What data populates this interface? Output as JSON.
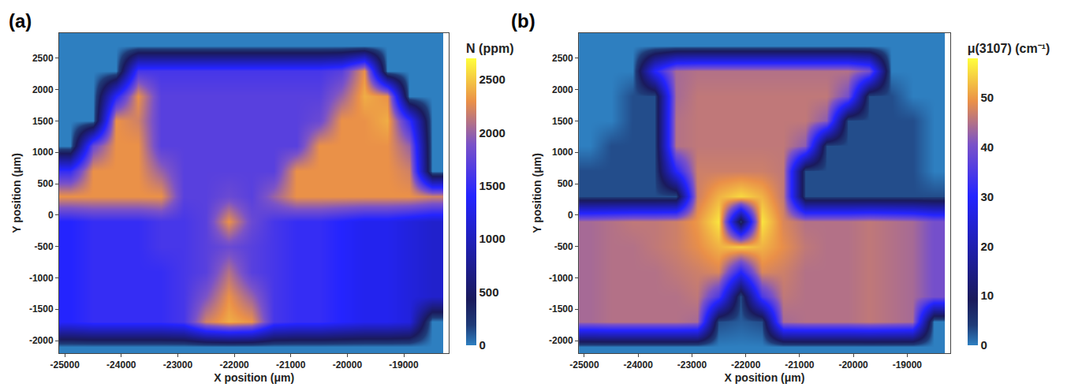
{
  "chart_data": [
    {
      "type": "heatmap",
      "panel": "(a)",
      "colorbar_title": "N (ppm)",
      "x_label": "X position (μm)",
      "y_label": "Y position (μm)",
      "xlim": [
        -25100,
        -18200
      ],
      "ylim": [
        -2200,
        2900
      ],
      "xticks": [
        -25000,
        -24000,
        -23000,
        -22000,
        -21000,
        -20000,
        -19000
      ],
      "yticks": [
        -2000,
        -1500,
        -1000,
        -500,
        0,
        500,
        1000,
        1500,
        2000,
        2500
      ],
      "zlim": [
        0,
        2700
      ],
      "zticks": [
        0,
        500,
        1000,
        1500,
        2000,
        2500
      ],
      "x": [
        -24900,
        -24500,
        -24100,
        -23700,
        -23300,
        -22900,
        -22500,
        -22100,
        -21700,
        -21300,
        -20900,
        -20500,
        -20100,
        -19700,
        -19300,
        -18900,
        -18500
      ],
      "y": [
        -2100,
        -1700,
        -1300,
        -900,
        -500,
        -100,
        300,
        700,
        1100,
        1500,
        1900,
        2300,
        2700
      ],
      "z": [
        [
          0,
          0,
          0,
          0,
          0,
          0,
          0,
          0,
          0,
          0,
          0,
          0,
          0,
          0,
          0,
          0,
          0
        ],
        [
          1400,
          1500,
          1500,
          1500,
          1500,
          1600,
          2200,
          2400,
          2300,
          1600,
          1500,
          1500,
          1400,
          1300,
          1300,
          1200,
          0
        ],
        [
          1400,
          1500,
          1500,
          1500,
          1500,
          1600,
          1900,
          2300,
          2000,
          1600,
          1500,
          1500,
          1400,
          1300,
          1300,
          1200,
          1100
        ],
        [
          1400,
          1500,
          1500,
          1500,
          1500,
          1600,
          1700,
          2100,
          1700,
          1600,
          1500,
          1500,
          1400,
          1300,
          1300,
          1200,
          1100
        ],
        [
          1400,
          1500,
          1500,
          1500,
          1600,
          1600,
          1700,
          1800,
          1700,
          1600,
          1500,
          1500,
          1400,
          1300,
          1300,
          1200,
          1100
        ],
        [
          1400,
          1500,
          1500,
          1500,
          1600,
          1600,
          1700,
          2300,
          1800,
          1600,
          1500,
          1500,
          1400,
          1300,
          1300,
          1200,
          1100
        ],
        [
          2300,
          2300,
          2300,
          2300,
          2300,
          1700,
          1700,
          1800,
          1700,
          2000,
          2300,
          2300,
          2300,
          2300,
          2300,
          2300,
          2200
        ],
        [
          1500,
          2300,
          2300,
          2300,
          2000,
          1700,
          1700,
          1700,
          1700,
          1700,
          2300,
          2300,
          2300,
          2300,
          2300,
          2200,
          0
        ],
        [
          0,
          1800,
          2300,
          2300,
          1700,
          1700,
          1700,
          1700,
          1700,
          1700,
          1700,
          2300,
          2300,
          2300,
          2300,
          2000,
          0
        ],
        [
          0,
          0,
          2300,
          2200,
          1700,
          1700,
          1700,
          1700,
          1700,
          1700,
          1700,
          1800,
          2300,
          2300,
          2400,
          1500,
          0
        ],
        [
          0,
          0,
          1400,
          2300,
          1700,
          1700,
          1700,
          1700,
          1700,
          1700,
          1700,
          1700,
          2000,
          2400,
          2300,
          0,
          0
        ],
        [
          0,
          0,
          0,
          1600,
          1600,
          1600,
          1600,
          1600,
          1600,
          1600,
          1600,
          1600,
          1700,
          2300,
          0,
          0,
          0
        ],
        [
          0,
          0,
          0,
          0,
          0,
          0,
          0,
          0,
          0,
          0,
          0,
          0,
          0,
          0,
          0,
          0,
          0
        ]
      ]
    },
    {
      "type": "heatmap",
      "panel": "(b)",
      "colorbar_title": "μ(3107) (cm⁻¹)",
      "x_label": "X position (μm)",
      "y_label": "Y position (μm)",
      "xlim": [
        -25100,
        -18200
      ],
      "ylim": [
        -2200,
        2900
      ],
      "xticks": [
        -25000,
        -24000,
        -23000,
        -22000,
        -21000,
        -20000,
        -19000
      ],
      "yticks": [
        -2000,
        -1500,
        -1000,
        -500,
        0,
        500,
        1000,
        1500,
        2000,
        2500
      ],
      "zlim": [
        0,
        58
      ],
      "zticks": [
        0,
        10,
        20,
        30,
        40,
        50
      ],
      "x": [
        -24900,
        -24500,
        -24100,
        -23700,
        -23300,
        -22900,
        -22500,
        -22100,
        -21700,
        -21300,
        -20900,
        -20500,
        -20100,
        -19700,
        -19300,
        -18900,
        -18500
      ],
      "y": [
        -2100,
        -1700,
        -1300,
        -900,
        -500,
        -100,
        300,
        700,
        1100,
        1500,
        1900,
        2300,
        2700
      ],
      "z": [
        [
          0,
          0,
          0,
          0,
          0,
          0,
          0,
          0,
          0,
          0,
          0,
          0,
          0,
          0,
          0,
          0,
          0
        ],
        [
          44,
          45,
          45,
          45,
          45,
          44,
          3,
          2,
          3,
          44,
          45,
          45,
          45,
          46,
          45,
          44,
          0
        ],
        [
          44,
          45,
          45,
          45,
          45,
          46,
          35,
          3,
          35,
          46,
          45,
          45,
          45,
          46,
          45,
          44,
          40
        ],
        [
          44,
          45,
          45,
          45,
          46,
          47,
          48,
          30,
          48,
          47,
          45,
          45,
          45,
          46,
          45,
          44,
          40
        ],
        [
          44,
          45,
          45,
          46,
          47,
          49,
          52,
          54,
          52,
          49,
          46,
          45,
          45,
          46,
          45,
          44,
          40
        ],
        [
          44,
          45,
          46,
          46,
          47,
          50,
          56,
          5,
          56,
          48,
          45,
          45,
          45,
          46,
          45,
          44,
          40
        ],
        [
          3,
          3,
          3,
          3,
          3,
          47,
          52,
          55,
          52,
          46,
          3,
          3,
          3,
          3,
          3,
          3,
          3
        ],
        [
          3,
          3,
          3,
          3,
          30,
          47,
          47,
          47,
          47,
          46,
          3,
          3,
          3,
          3,
          3,
          3,
          0
        ],
        [
          0,
          3,
          3,
          3,
          45,
          46,
          46,
          46,
          46,
          46,
          42,
          3,
          3,
          3,
          3,
          3,
          0
        ],
        [
          0,
          0,
          3,
          3,
          45,
          46,
          46,
          46,
          46,
          46,
          46,
          42,
          3,
          3,
          3,
          3,
          0
        ],
        [
          0,
          0,
          3,
          3,
          44,
          46,
          46,
          46,
          46,
          46,
          46,
          46,
          40,
          3,
          3,
          0,
          0
        ],
        [
          0,
          0,
          0,
          30,
          44,
          45,
          45,
          45,
          45,
          45,
          45,
          45,
          45,
          40,
          0,
          0,
          0
        ],
        [
          0,
          0,
          0,
          0,
          0,
          0,
          0,
          0,
          0,
          0,
          0,
          0,
          0,
          0,
          0,
          0,
          0
        ]
      ]
    }
  ]
}
